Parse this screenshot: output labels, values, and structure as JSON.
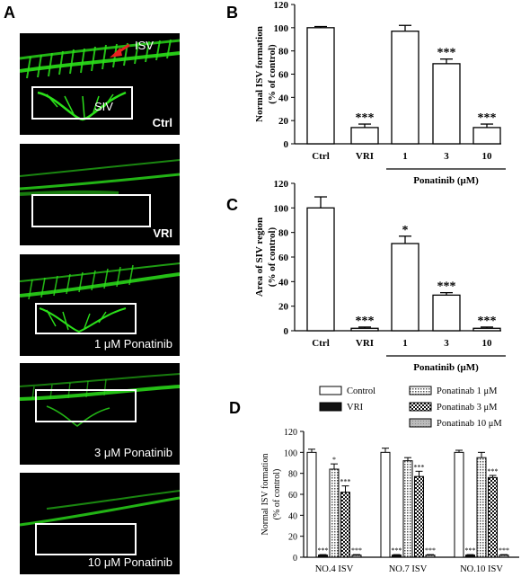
{
  "panel_letters": {
    "a": "A",
    "b": "B",
    "c": "C",
    "d": "D"
  },
  "panel_a": {
    "labels": [
      "Ctrl",
      "VRI",
      "1 μM Ponatinib",
      "3 μM Ponatinib",
      "10 μM Ponatinib"
    ],
    "isv_label": "ISV",
    "siv_label": "SIV"
  },
  "chart_data": [
    {
      "type": "bar",
      "panel": "B",
      "ylabel": "Normal ISV formation\n(% of control)",
      "categories": [
        "Ctrl",
        "VRI",
        "1",
        "3",
        "10"
      ],
      "values": [
        100,
        14,
        97,
        69,
        14
      ],
      "errors": [
        1,
        3,
        5,
        4,
        3
      ],
      "significance": [
        "",
        "***",
        "",
        "***",
        "***"
      ],
      "yticks": [
        0,
        20,
        40,
        60,
        80,
        100,
        120
      ],
      "ylim": [
        0,
        120
      ],
      "group_label": "Ponatinib (μM)"
    },
    {
      "type": "bar",
      "panel": "C",
      "ylabel": "Area of SIV region\n(% of control)",
      "categories": [
        "Ctrl",
        "VRI",
        "1",
        "3",
        "10"
      ],
      "values": [
        100,
        2,
        71,
        29,
        2
      ],
      "errors": [
        9,
        1,
        6,
        2,
        1
      ],
      "significance": [
        "",
        "***",
        "*",
        "***",
        "***"
      ],
      "yticks": [
        0,
        20,
        40,
        60,
        80,
        100,
        120
      ],
      "ylim": [
        0,
        120
      ],
      "group_label": "Ponatinib (μM)"
    },
    {
      "type": "bar",
      "panel": "D",
      "ylabel": "Normal ISV formation\n(% of control)",
      "categories": [
        "NO.4 ISV",
        "NO.7 ISV",
        "NO.10 ISV"
      ],
      "yticks": [
        0,
        20,
        40,
        60,
        80,
        100,
        120
      ],
      "ylim": [
        0,
        120
      ],
      "legend": [
        "Control",
        "VRI",
        "Ponatinab 1 μM",
        "Ponatinab 3 μM",
        "Ponatinab 10 μM"
      ],
      "series": [
        {
          "name": "Control",
          "values": [
            100,
            100,
            100
          ],
          "errors": [
            3,
            4,
            2
          ],
          "significance": [
            "",
            "",
            ""
          ]
        },
        {
          "name": "VRI",
          "values": [
            2,
            2,
            2
          ],
          "errors": [
            0.5,
            0.5,
            0.5
          ],
          "significance": [
            "***",
            "***",
            "***"
          ]
        },
        {
          "name": "Ponatinab 1 μM",
          "values": [
            84,
            92,
            95
          ],
          "errors": [
            5,
            3,
            5
          ],
          "significance": [
            "*",
            "",
            ""
          ]
        },
        {
          "name": "Ponatinab 3 μM",
          "values": [
            62,
            77,
            76
          ],
          "errors": [
            6,
            5,
            2
          ],
          "significance": [
            "***",
            "***",
            "***"
          ]
        },
        {
          "name": "Ponatinab 10 μM",
          "values": [
            2,
            2,
            2
          ],
          "errors": [
            0.5,
            0.5,
            0.5
          ],
          "significance": [
            "***",
            "***",
            "***"
          ]
        }
      ]
    }
  ]
}
